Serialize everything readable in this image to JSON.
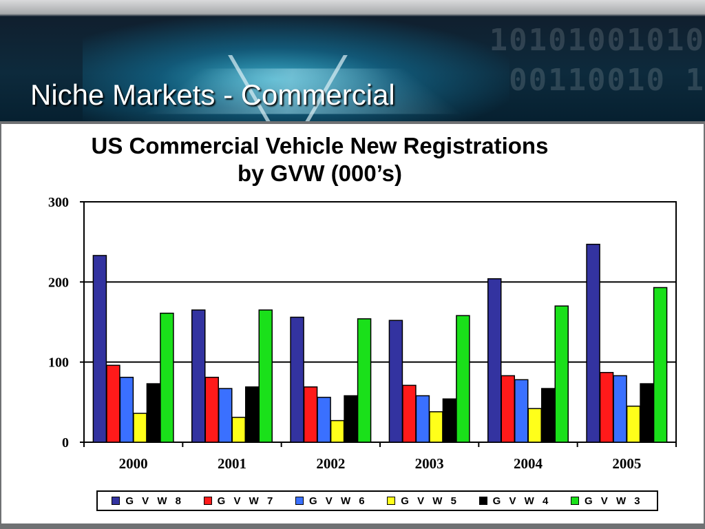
{
  "slide": {
    "title": "Niche Markets - Commercial"
  },
  "chart_data": {
    "type": "bar",
    "title": "US Commercial Vehicle New Registrations by GVW (000’s)",
    "title_lines": [
      "US Commercial Vehicle New Registrations",
      "by GVW (000’s)"
    ],
    "xlabel": "",
    "ylabel": "",
    "ylim": [
      0,
      300
    ],
    "yticks": [
      0,
      100,
      200,
      300
    ],
    "grid": true,
    "legend_position": "bottom",
    "categories": [
      "2000",
      "2001",
      "2002",
      "2003",
      "2004",
      "2005"
    ],
    "series": [
      {
        "name": "GVW 8",
        "legend_label": "G V W  8",
        "color": "#3333a0",
        "values": [
          233,
          165,
          156,
          152,
          204,
          247
        ]
      },
      {
        "name": "GVW 7",
        "legend_label": "G V W  7",
        "color": "#ff1a1a",
        "values": [
          96,
          81,
          69,
          71,
          83,
          87
        ]
      },
      {
        "name": "GVW 6",
        "legend_label": "G V W  6",
        "color": "#3a70ff",
        "values": [
          81,
          67,
          56,
          58,
          78,
          83
        ]
      },
      {
        "name": "GVW 5",
        "legend_label": "G V W  5",
        "color": "#ffff1a",
        "values": [
          36,
          31,
          27,
          38,
          42,
          45
        ]
      },
      {
        "name": "GVW 4",
        "legend_label": "G V W  4",
        "color": "#000000",
        "values": [
          73,
          69,
          58,
          54,
          67,
          73
        ]
      },
      {
        "name": "GVW 3",
        "legend_label": "G V W  3",
        "color": "#1ae01a",
        "values": [
          161,
          165,
          154,
          158,
          170,
          193
        ]
      }
    ]
  }
}
